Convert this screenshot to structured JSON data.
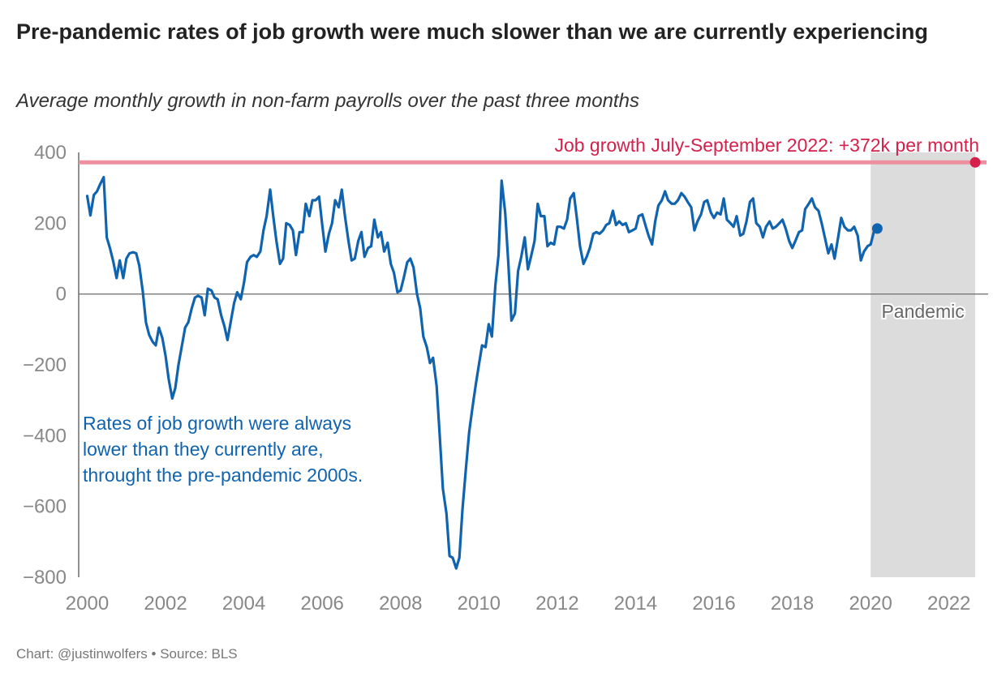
{
  "header": {
    "title": "Pre-pandemic rates of job growth were much slower than we are currently experiencing",
    "subtitle": "Average monthly growth in non-farm payrolls over the past three months"
  },
  "footer": {
    "credit": "Chart: @justinwolfers • Source: BLS"
  },
  "colors": {
    "series": "#1063ae",
    "reference": "#d6204c",
    "reference_line": "#ee8fa0",
    "band": "#dcdcdc",
    "axis_tick": "#888888",
    "baseline": "#777777"
  },
  "chart_data": {
    "type": "line",
    "title": "",
    "xlabel": "",
    "ylabel": "",
    "xlim": [
      2000,
      2023
    ],
    "ylim": [
      -800,
      400
    ],
    "x_ticks": [
      2000,
      2002,
      2004,
      2006,
      2008,
      2010,
      2012,
      2014,
      2016,
      2018,
      2020,
      2022
    ],
    "y_ticks": [
      400,
      200,
      0,
      -200,
      -400,
      -600,
      -800
    ],
    "y_tick_labels": [
      "400",
      "200",
      "0",
      "−200",
      "−400",
      "−600",
      "−800"
    ],
    "grid": false,
    "series": [
      {
        "points": [
          [
            2000.0,
            277
          ],
          [
            2000.08,
            222
          ],
          [
            2000.17,
            280
          ],
          [
            2000.25,
            290
          ],
          [
            2000.33,
            310
          ],
          [
            2000.42,
            330
          ],
          [
            2000.5,
            160
          ],
          [
            2000.58,
            130
          ],
          [
            2000.67,
            90
          ],
          [
            2000.75,
            45
          ],
          [
            2000.83,
            95
          ],
          [
            2000.92,
            45
          ],
          [
            2001.0,
            100
          ],
          [
            2001.08,
            115
          ],
          [
            2001.17,
            118
          ],
          [
            2001.25,
            115
          ],
          [
            2001.33,
            80
          ],
          [
            2001.42,
            5
          ],
          [
            2001.5,
            -80
          ],
          [
            2001.58,
            -115
          ],
          [
            2001.67,
            -135
          ],
          [
            2001.75,
            -145
          ],
          [
            2001.83,
            -95
          ],
          [
            2001.92,
            -125
          ],
          [
            2002.0,
            -175
          ],
          [
            2002.08,
            -240
          ],
          [
            2002.17,
            -295
          ],
          [
            2002.25,
            -265
          ],
          [
            2002.33,
            -200
          ],
          [
            2002.42,
            -145
          ],
          [
            2002.5,
            -95
          ],
          [
            2002.58,
            -80
          ],
          [
            2002.67,
            -40
          ],
          [
            2002.75,
            -10
          ],
          [
            2002.83,
            -5
          ],
          [
            2002.92,
            -10
          ],
          [
            2003.0,
            -60
          ],
          [
            2003.08,
            15
          ],
          [
            2003.17,
            10
          ],
          [
            2003.25,
            -10
          ],
          [
            2003.33,
            -15
          ],
          [
            2003.42,
            -60
          ],
          [
            2003.5,
            -90
          ],
          [
            2003.58,
            -130
          ],
          [
            2003.67,
            -75
          ],
          [
            2003.75,
            -25
          ],
          [
            2003.83,
            5
          ],
          [
            2003.92,
            -15
          ],
          [
            2004.0,
            30
          ],
          [
            2004.08,
            90
          ],
          [
            2004.17,
            105
          ],
          [
            2004.25,
            110
          ],
          [
            2004.33,
            105
          ],
          [
            2004.42,
            120
          ],
          [
            2004.5,
            180
          ],
          [
            2004.58,
            220
          ],
          [
            2004.67,
            295
          ],
          [
            2004.75,
            220
          ],
          [
            2004.83,
            150
          ],
          [
            2004.92,
            85
          ],
          [
            2005.0,
            100
          ],
          [
            2005.08,
            200
          ],
          [
            2005.17,
            195
          ],
          [
            2005.25,
            180
          ],
          [
            2005.33,
            110
          ],
          [
            2005.42,
            175
          ],
          [
            2005.5,
            175
          ],
          [
            2005.58,
            255
          ],
          [
            2005.67,
            220
          ],
          [
            2005.75,
            265
          ],
          [
            2005.83,
            265
          ],
          [
            2005.92,
            275
          ],
          [
            2006.0,
            195
          ],
          [
            2006.08,
            120
          ],
          [
            2006.17,
            170
          ],
          [
            2006.25,
            200
          ],
          [
            2006.33,
            265
          ],
          [
            2006.42,
            245
          ],
          [
            2006.5,
            295
          ],
          [
            2006.58,
            220
          ],
          [
            2006.67,
            150
          ],
          [
            2006.75,
            95
          ],
          [
            2006.83,
            100
          ],
          [
            2006.92,
            150
          ],
          [
            2007.0,
            175
          ],
          [
            2007.08,
            105
          ],
          [
            2007.17,
            130
          ],
          [
            2007.25,
            135
          ],
          [
            2007.33,
            210
          ],
          [
            2007.42,
            160
          ],
          [
            2007.5,
            175
          ],
          [
            2007.58,
            120
          ],
          [
            2007.67,
            145
          ],
          [
            2007.75,
            85
          ],
          [
            2007.83,
            60
          ],
          [
            2007.92,
            5
          ],
          [
            2008.0,
            10
          ],
          [
            2008.08,
            45
          ],
          [
            2008.17,
            90
          ],
          [
            2008.25,
            100
          ],
          [
            2008.33,
            75
          ],
          [
            2008.42,
            0
          ],
          [
            2008.5,
            -40
          ],
          [
            2008.58,
            -120
          ],
          [
            2008.67,
            -150
          ],
          [
            2008.75,
            -195
          ],
          [
            2008.83,
            -180
          ],
          [
            2008.92,
            -260
          ],
          [
            2009.0,
            -400
          ],
          [
            2009.08,
            -550
          ],
          [
            2009.17,
            -620
          ],
          [
            2009.25,
            -740
          ],
          [
            2009.33,
            -745
          ],
          [
            2009.42,
            -775
          ],
          [
            2009.5,
            -745
          ],
          [
            2009.58,
            -610
          ],
          [
            2009.67,
            -490
          ],
          [
            2009.75,
            -390
          ],
          [
            2009.83,
            -325
          ],
          [
            2009.92,
            -255
          ],
          [
            2010.0,
            -200
          ],
          [
            2010.08,
            -145
          ],
          [
            2010.17,
            -150
          ],
          [
            2010.25,
            -85
          ],
          [
            2010.33,
            -120
          ],
          [
            2010.42,
            25
          ],
          [
            2010.5,
            110
          ],
          [
            2010.58,
            320
          ],
          [
            2010.67,
            230
          ],
          [
            2010.75,
            90
          ],
          [
            2010.83,
            -75
          ],
          [
            2010.92,
            -55
          ],
          [
            2011.0,
            65
          ],
          [
            2011.08,
            105
          ],
          [
            2011.17,
            160
          ],
          [
            2011.25,
            70
          ],
          [
            2011.33,
            105
          ],
          [
            2011.42,
            150
          ],
          [
            2011.5,
            255
          ],
          [
            2011.58,
            220
          ],
          [
            2011.67,
            220
          ],
          [
            2011.75,
            135
          ],
          [
            2011.83,
            145
          ],
          [
            2011.92,
            140
          ],
          [
            2012.0,
            190
          ],
          [
            2012.08,
            190
          ],
          [
            2012.17,
            185
          ],
          [
            2012.25,
            210
          ],
          [
            2012.33,
            270
          ],
          [
            2012.42,
            285
          ],
          [
            2012.5,
            215
          ],
          [
            2012.58,
            135
          ],
          [
            2012.67,
            85
          ],
          [
            2012.75,
            105
          ],
          [
            2012.83,
            130
          ],
          [
            2012.92,
            170
          ],
          [
            2013.0,
            175
          ],
          [
            2013.08,
            170
          ],
          [
            2013.17,
            180
          ],
          [
            2013.25,
            195
          ],
          [
            2013.33,
            200
          ],
          [
            2013.42,
            235
          ],
          [
            2013.5,
            195
          ],
          [
            2013.58,
            205
          ],
          [
            2013.67,
            195
          ],
          [
            2013.75,
            200
          ],
          [
            2013.83,
            175
          ],
          [
            2013.92,
            180
          ],
          [
            2014.0,
            185
          ],
          [
            2014.08,
            220
          ],
          [
            2014.17,
            225
          ],
          [
            2014.25,
            195
          ],
          [
            2014.33,
            165
          ],
          [
            2014.42,
            140
          ],
          [
            2014.5,
            205
          ],
          [
            2014.58,
            250
          ],
          [
            2014.67,
            265
          ],
          [
            2014.75,
            290
          ],
          [
            2014.83,
            265
          ],
          [
            2014.92,
            255
          ],
          [
            2015.0,
            255
          ],
          [
            2015.08,
            265
          ],
          [
            2015.17,
            285
          ],
          [
            2015.25,
            275
          ],
          [
            2015.33,
            260
          ],
          [
            2015.42,
            245
          ],
          [
            2015.5,
            180
          ],
          [
            2015.58,
            205
          ],
          [
            2015.67,
            225
          ],
          [
            2015.75,
            260
          ],
          [
            2015.83,
            265
          ],
          [
            2015.92,
            230
          ],
          [
            2016.0,
            215
          ],
          [
            2016.08,
            230
          ],
          [
            2016.17,
            225
          ],
          [
            2016.25,
            270
          ],
          [
            2016.33,
            210
          ],
          [
            2016.42,
            200
          ],
          [
            2016.5,
            190
          ],
          [
            2016.58,
            220
          ],
          [
            2016.67,
            165
          ],
          [
            2016.75,
            170
          ],
          [
            2016.83,
            205
          ],
          [
            2016.92,
            260
          ],
          [
            2017.0,
            270
          ],
          [
            2017.08,
            200
          ],
          [
            2017.17,
            190
          ],
          [
            2017.25,
            160
          ],
          [
            2017.33,
            190
          ],
          [
            2017.42,
            205
          ],
          [
            2017.5,
            185
          ],
          [
            2017.58,
            190
          ],
          [
            2017.67,
            200
          ],
          [
            2017.75,
            210
          ],
          [
            2017.83,
            185
          ],
          [
            2017.92,
            150
          ],
          [
            2018.0,
            130
          ],
          [
            2018.08,
            150
          ],
          [
            2018.17,
            175
          ],
          [
            2018.25,
            180
          ],
          [
            2018.33,
            240
          ],
          [
            2018.42,
            255
          ],
          [
            2018.5,
            270
          ],
          [
            2018.58,
            245
          ],
          [
            2018.67,
            235
          ],
          [
            2018.75,
            200
          ],
          [
            2018.83,
            160
          ],
          [
            2018.92,
            115
          ],
          [
            2019.0,
            140
          ],
          [
            2019.08,
            100
          ],
          [
            2019.17,
            160
          ],
          [
            2019.25,
            215
          ],
          [
            2019.33,
            190
          ],
          [
            2019.42,
            180
          ],
          [
            2019.5,
            180
          ],
          [
            2019.58,
            190
          ],
          [
            2019.67,
            165
          ],
          [
            2019.75,
            95
          ],
          [
            2019.83,
            120
          ],
          [
            2019.92,
            135
          ],
          [
            2020.0,
            140
          ],
          [
            2020.08,
            175
          ],
          [
            2020.17,
            185
          ]
        ]
      }
    ],
    "end_point": {
      "x": 2020.17,
      "y": 185
    },
    "reference_line": {
      "y": 372,
      "label": "Job growth July-September 2022: +372k per month",
      "marker_x": 2022.67
    },
    "shaded_band": {
      "x_start": 2020.0,
      "x_end": 2022.67,
      "label": "Pandemic"
    },
    "callout": {
      "lines": [
        "Rates of job growth were always",
        "lower than they currently are,",
        "throught the pre-pandemic 2000s."
      ]
    }
  }
}
